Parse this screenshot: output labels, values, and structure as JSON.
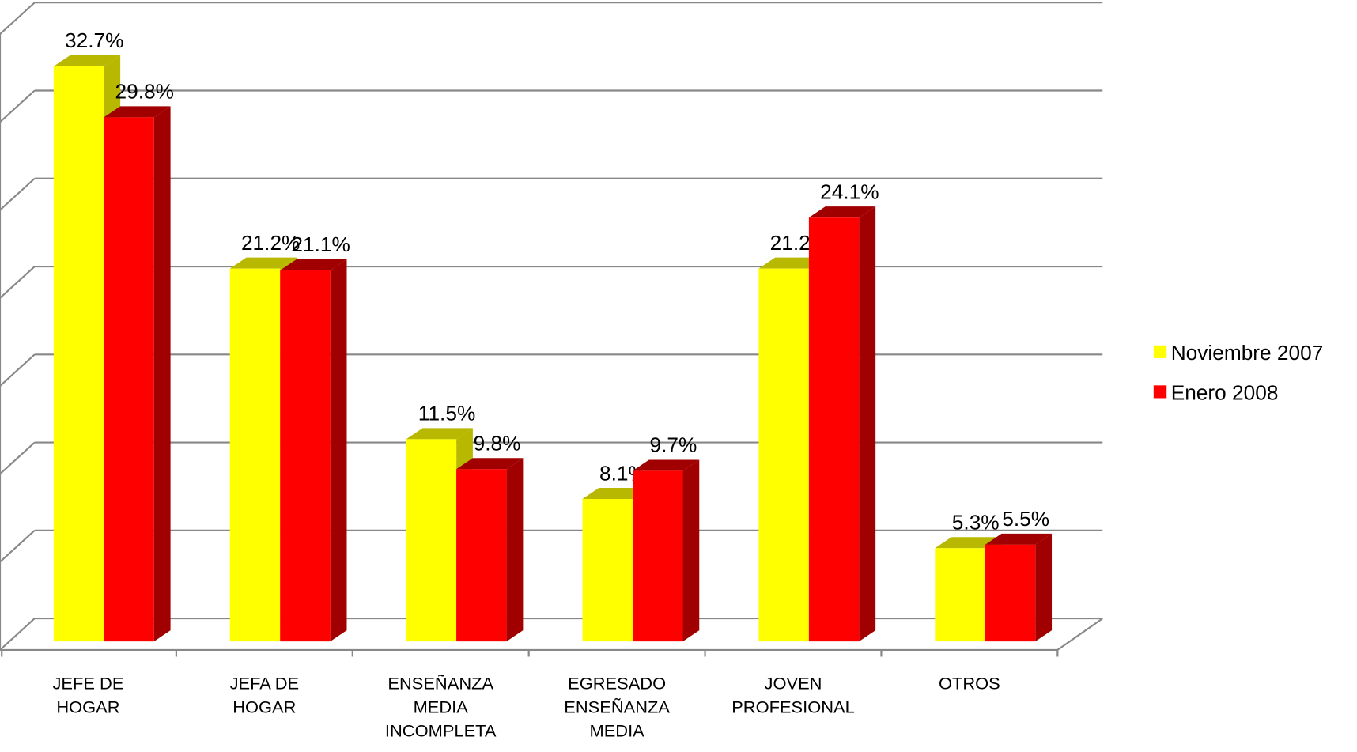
{
  "chart_data": {
    "type": "bar3d",
    "categories": [
      [
        "JEFE DE",
        "HOGAR"
      ],
      [
        "JEFA DE",
        "HOGAR"
      ],
      [
        "ENSEÑANZA",
        "MEDIA",
        "INCOMPLETA"
      ],
      [
        "EGRESADO",
        "ENSEÑANZA",
        "MEDIA"
      ],
      [
        "JOVEN",
        "PROFESIONAL"
      ],
      [
        "OTROS"
      ]
    ],
    "series": [
      {
        "name": "Noviembre 2007",
        "color": "#ffff00",
        "side": "#b8b800",
        "values": [
          32.7,
          21.2,
          11.5,
          8.1,
          21.2,
          5.3
        ],
        "value_labels": [
          "32.7%",
          "21.2%",
          "11.5%",
          "8.1%",
          "21.2%",
          "5.3%"
        ]
      },
      {
        "name": "Enero 2008",
        "color": "#ff0000",
        "side": "#a00000",
        "values": [
          29.8,
          21.1,
          9.8,
          9.7,
          24.1,
          5.5
        ],
        "value_labels": [
          "29.8%",
          "21.1%",
          "9.8%",
          "9.7%",
          "24.1%",
          "5.5%"
        ]
      }
    ],
    "ylim": [
      0,
      35
    ],
    "yticks": [
      0,
      5,
      10,
      15,
      20,
      25,
      30,
      35
    ],
    "grid": true,
    "legend": "right"
  }
}
